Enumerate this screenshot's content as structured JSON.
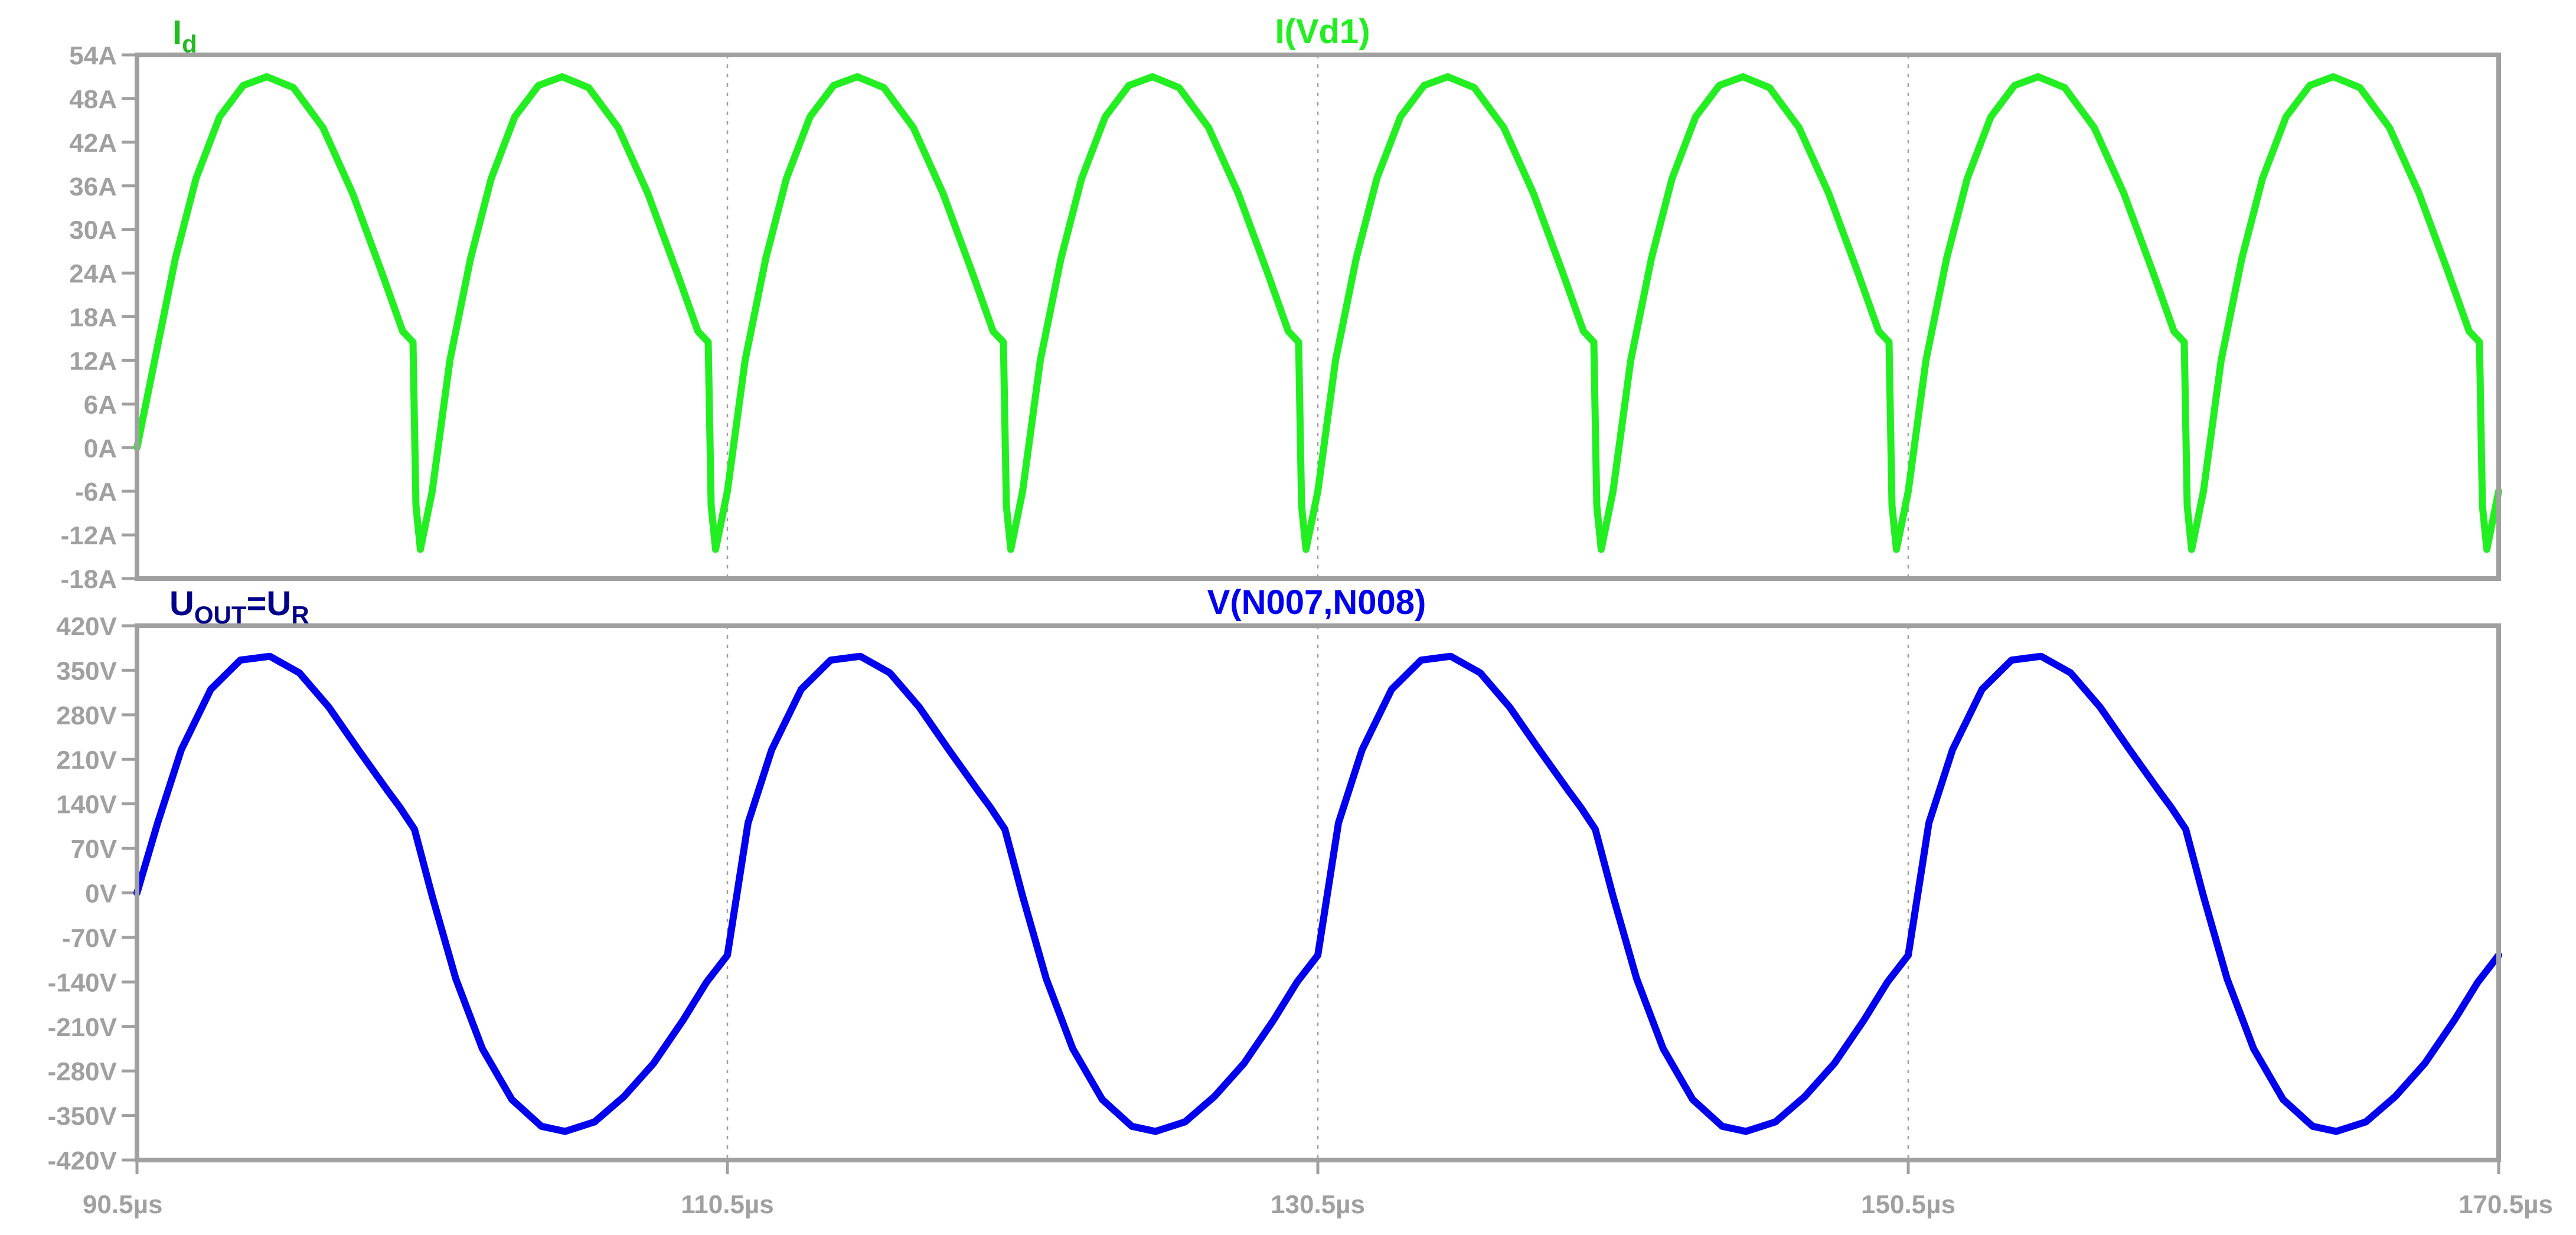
{
  "chart_data": [
    {
      "type": "line",
      "panel": "top",
      "annotation": {
        "main": "I",
        "sub": "d"
      },
      "annotation_color": "#22bb22",
      "series_name": "I(Vd1)",
      "series_color": "#22ee22",
      "x_unit": "µs",
      "y_unit": "A",
      "xlim": [
        90.5,
        170.5
      ],
      "ylim": [
        -18,
        54
      ],
      "yticks": [
        54,
        48,
        42,
        36,
        30,
        24,
        18,
        12,
        6,
        0,
        -6,
        -12,
        -18
      ],
      "ytick_labels": [
        "54A",
        "48A",
        "42A",
        "36A",
        "30A",
        "24A",
        "18A",
        "12A",
        "6A",
        "0A",
        "-6A",
        "-12A",
        "-18A"
      ],
      "x_grid": [
        110.5,
        130.5,
        150.5
      ],
      "period": 10,
      "points": [
        [
          90.5,
          0
        ],
        [
          91.1,
          12
        ],
        [
          91.8,
          26
        ],
        [
          92.5,
          37
        ],
        [
          93.3,
          45.5
        ],
        [
          94.1,
          49.8
        ],
        [
          94.9,
          51
        ],
        [
          95.8,
          49.5
        ],
        [
          96.8,
          44
        ],
        [
          97.8,
          35
        ],
        [
          98.8,
          24
        ],
        [
          99.5,
          16
        ],
        [
          99.85,
          14.5
        ],
        [
          99.95,
          -8
        ],
        [
          100.1,
          -14
        ],
        [
          100.5,
          -6
        ]
      ],
      "grid": true
    },
    {
      "type": "line",
      "panel": "bottom",
      "annotation": {
        "main": "U",
        "sub": "OUT",
        "rest": "=U",
        "sub2": "R"
      },
      "annotation_color": "#000088",
      "series_name": "V(N007,N008)",
      "series_color": "#0000ee",
      "x_unit": "µs",
      "y_unit": "V",
      "xlim": [
        90.5,
        170.5
      ],
      "ylim": [
        -420,
        420
      ],
      "yticks": [
        420,
        350,
        280,
        210,
        140,
        70,
        0,
        -70,
        -140,
        -210,
        -280,
        -350,
        -420
      ],
      "ytick_labels": [
        "420V",
        "350V",
        "280V",
        "210V",
        "140V",
        "70V",
        "0V",
        "-70V",
        "-140V",
        "-210V",
        "-280V",
        "-350V",
        "-420V"
      ],
      "x_grid": [
        110.5,
        130.5,
        150.5
      ],
      "period": 20,
      "points": [
        [
          90.5,
          0
        ],
        [
          91.2,
          110
        ],
        [
          92.0,
          225
        ],
        [
          93.0,
          320
        ],
        [
          94.0,
          366
        ],
        [
          95.0,
          372
        ],
        [
          96.0,
          346
        ],
        [
          97.0,
          292
        ],
        [
          98.0,
          225
        ],
        [
          99.0,
          160
        ],
        [
          99.4,
          135
        ],
        [
          99.9,
          100
        ],
        [
          100.5,
          -5
        ],
        [
          101.3,
          -135
        ],
        [
          102.2,
          -245
        ],
        [
          103.2,
          -325
        ],
        [
          104.2,
          -367
        ],
        [
          105.0,
          -375
        ],
        [
          106.0,
          -360
        ],
        [
          107.0,
          -320
        ],
        [
          108.0,
          -268
        ],
        [
          109.0,
          -200
        ],
        [
          109.8,
          -140
        ],
        [
          110.5,
          -98
        ]
      ],
      "grid": true
    }
  ],
  "x_axis": {
    "ticks": [
      90.5,
      110.5,
      130.5,
      150.5,
      170.5
    ],
    "tick_labels": [
      "90.5µs",
      "110.5µs",
      "130.5µs",
      "150.5µs",
      "170.5µs"
    ]
  }
}
